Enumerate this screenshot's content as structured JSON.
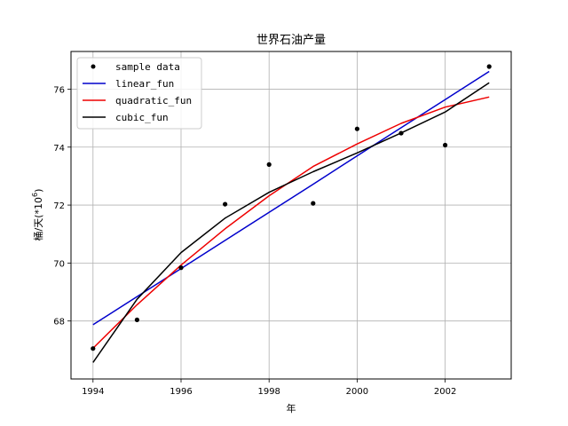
{
  "chart_data": {
    "type": "line",
    "title": "世界石油产量",
    "xlabel": "年",
    "ylabel": "桶/天(*10",
    "ylabel_sup": "6",
    "ylabel_close": ")",
    "xlim": [
      1993.5,
      2003.5
    ],
    "ylim": [
      66.0,
      77.3
    ],
    "x_ticks": [
      1994,
      1996,
      1998,
      2000,
      2002
    ],
    "x_tick_labels": [
      "1994",
      "1996",
      "1998",
      "2000",
      "2002"
    ],
    "y_ticks": [
      68,
      70,
      72,
      74,
      76
    ],
    "y_tick_labels": [
      "68",
      "70",
      "72",
      "74",
      "76"
    ],
    "grid": true,
    "legend_position": "top-left",
    "x": [
      1994,
      1995,
      1996,
      1997,
      1998,
      1999,
      2000,
      2001,
      2002,
      2003
    ],
    "scatter": {
      "name": "sample data",
      "color": "#000000",
      "values": [
        67.05,
        68.04,
        69.84,
        72.03,
        73.4,
        72.06,
        74.63,
        74.48,
        74.07,
        76.78
      ]
    },
    "series": [
      {
        "name": "linear_fun",
        "color": "#0000cc",
        "values": [
          67.87,
          68.84,
          69.81,
          70.78,
          71.75,
          72.72,
          73.7,
          74.67,
          75.64,
          76.61
        ]
      },
      {
        "name": "quadratic_fun",
        "color": "#ee0000",
        "values": [
          67.06,
          68.56,
          69.93,
          71.18,
          72.32,
          73.33,
          74.11,
          74.82,
          75.38,
          75.73
        ]
      },
      {
        "name": "cubic_fun",
        "color": "#000000",
        "values": [
          66.57,
          68.75,
          70.36,
          71.55,
          72.44,
          73.15,
          73.8,
          74.49,
          75.21,
          76.22
        ]
      }
    ]
  }
}
